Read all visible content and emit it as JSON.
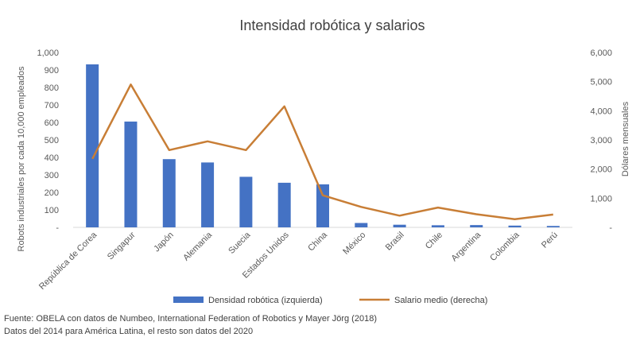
{
  "chart_data": {
    "type": "bar+line",
    "title": "Intensidad robótica y salarios",
    "categories": [
      "República de Corea",
      "Singapur",
      "Japón",
      "Alemania",
      "Suecia",
      "Estados Unidos",
      "China",
      "México",
      "Brasil",
      "Chile",
      "Argentina",
      "Colombia",
      "Perú"
    ],
    "series": [
      {
        "name": "Densidad robótica (izquierda)",
        "type": "bar",
        "axis": "left",
        "color": "#4472C4",
        "values": [
          932,
          605,
          390,
          371,
          289,
          255,
          246,
          25,
          15,
          12,
          13,
          10,
          8
        ]
      },
      {
        "name": "Salario medio (derecha)",
        "type": "line",
        "axis": "right",
        "color": "#C87E36",
        "values": [
          2350,
          4900,
          2650,
          2950,
          2650,
          4150,
          1100,
          700,
          400,
          680,
          450,
          280,
          440
        ]
      }
    ],
    "y_left": {
      "label": "Robots industriales por cada 10,000 empleados",
      "min": 0,
      "max": 1000,
      "ticks": [
        0,
        100,
        200,
        300,
        400,
        500,
        600,
        700,
        800,
        900,
        1000
      ],
      "tick_labels": [
        "-",
        "100",
        "200",
        "300",
        "400",
        "500",
        "600",
        "700",
        "800",
        "900",
        "1,000"
      ]
    },
    "y_right": {
      "label": "Dólares mensuales",
      "min": 0,
      "max": 6000,
      "ticks": [
        0,
        1000,
        2000,
        3000,
        4000,
        5000,
        6000
      ],
      "tick_labels": [
        "-",
        "1,000",
        "2,000",
        "3,000",
        "4,000",
        "5,000",
        "6,000"
      ]
    },
    "legend_position": "bottom",
    "grid": false
  },
  "notes": {
    "source": "Fuente: OBELA con datos de Numbeo, International Federation of Robotics y Mayer Jörg (2018)",
    "data_years": "Datos del 2014 para América Latina, el resto son datos del 2020"
  }
}
